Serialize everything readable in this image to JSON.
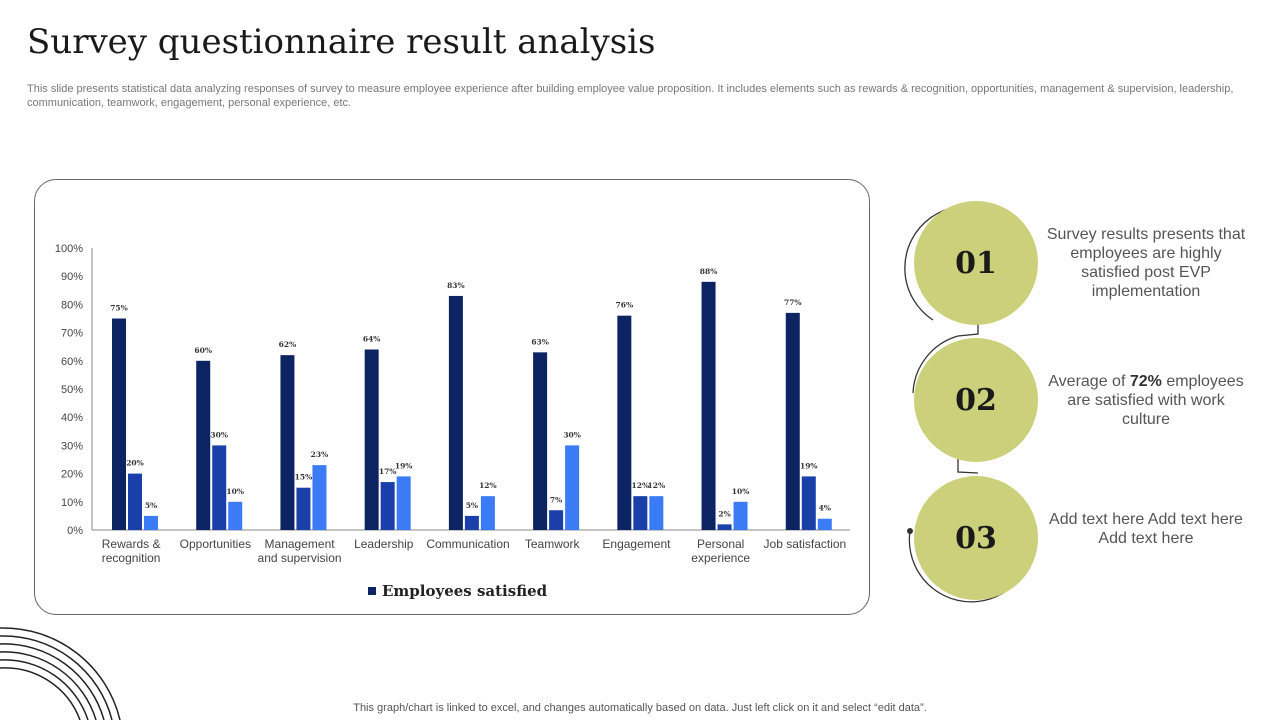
{
  "header": {
    "title": "Survey questionnaire result analysis",
    "description": "This slide presents statistical data analyzing responses of survey to  measure employee experience after building employee value proposition. It includes elements such as rewards & recognition, opportunities, management & supervision, leadership, communication, teamwork, engagement, personal experience, etc."
  },
  "chart_data": {
    "type": "bar",
    "categories": [
      [
        "Rewards &",
        "recognition"
      ],
      [
        "Opportunities"
      ],
      [
        "Management",
        "and supervision"
      ],
      [
        "Leadership"
      ],
      [
        "Communication"
      ],
      [
        "Teamwork"
      ],
      [
        "Engagement"
      ],
      [
        "Personal",
        "experience"
      ],
      [
        "Job satisfaction"
      ]
    ],
    "series": [
      {
        "name": "Employees satisfied",
        "values": [
          75,
          60,
          62,
          64,
          83,
          63,
          76,
          88,
          77
        ],
        "color": "#0c2461"
      },
      {
        "values": [
          20,
          30,
          15,
          17,
          5,
          7,
          12,
          2,
          19
        ],
        "color": "#1a3fa8"
      },
      {
        "values": [
          5,
          10,
          23,
          19,
          12,
          30,
          12,
          10,
          4
        ],
        "color": "#3b7bf5"
      }
    ],
    "ylim": [
      0,
      100
    ],
    "yticks": [
      "0%",
      "10%",
      "20%",
      "30%",
      "40%",
      "50%",
      "60%",
      "70%",
      "80%",
      "90%",
      "100%"
    ],
    "legend_position": "bottom",
    "grid": false
  },
  "points": [
    {
      "number": "01",
      "text": "Survey results presents that employees are highly satisfied post EVP implementation"
    },
    {
      "number": "02",
      "text_before": "Average of ",
      "highlight": "72%",
      "text_after": " employees are satisfied with work culture"
    },
    {
      "number": "03",
      "text": "Add text here Add text here Add text here"
    }
  ],
  "footer": "This graph/chart is linked to excel,  and changes automatically based on data. Just left click on it and select “edit data”.",
  "colors": {
    "accent": "#ccd07a",
    "dark_blue": "#0c2461",
    "mid_blue": "#1a3fa8",
    "light_blue": "#3b7bf5"
  }
}
